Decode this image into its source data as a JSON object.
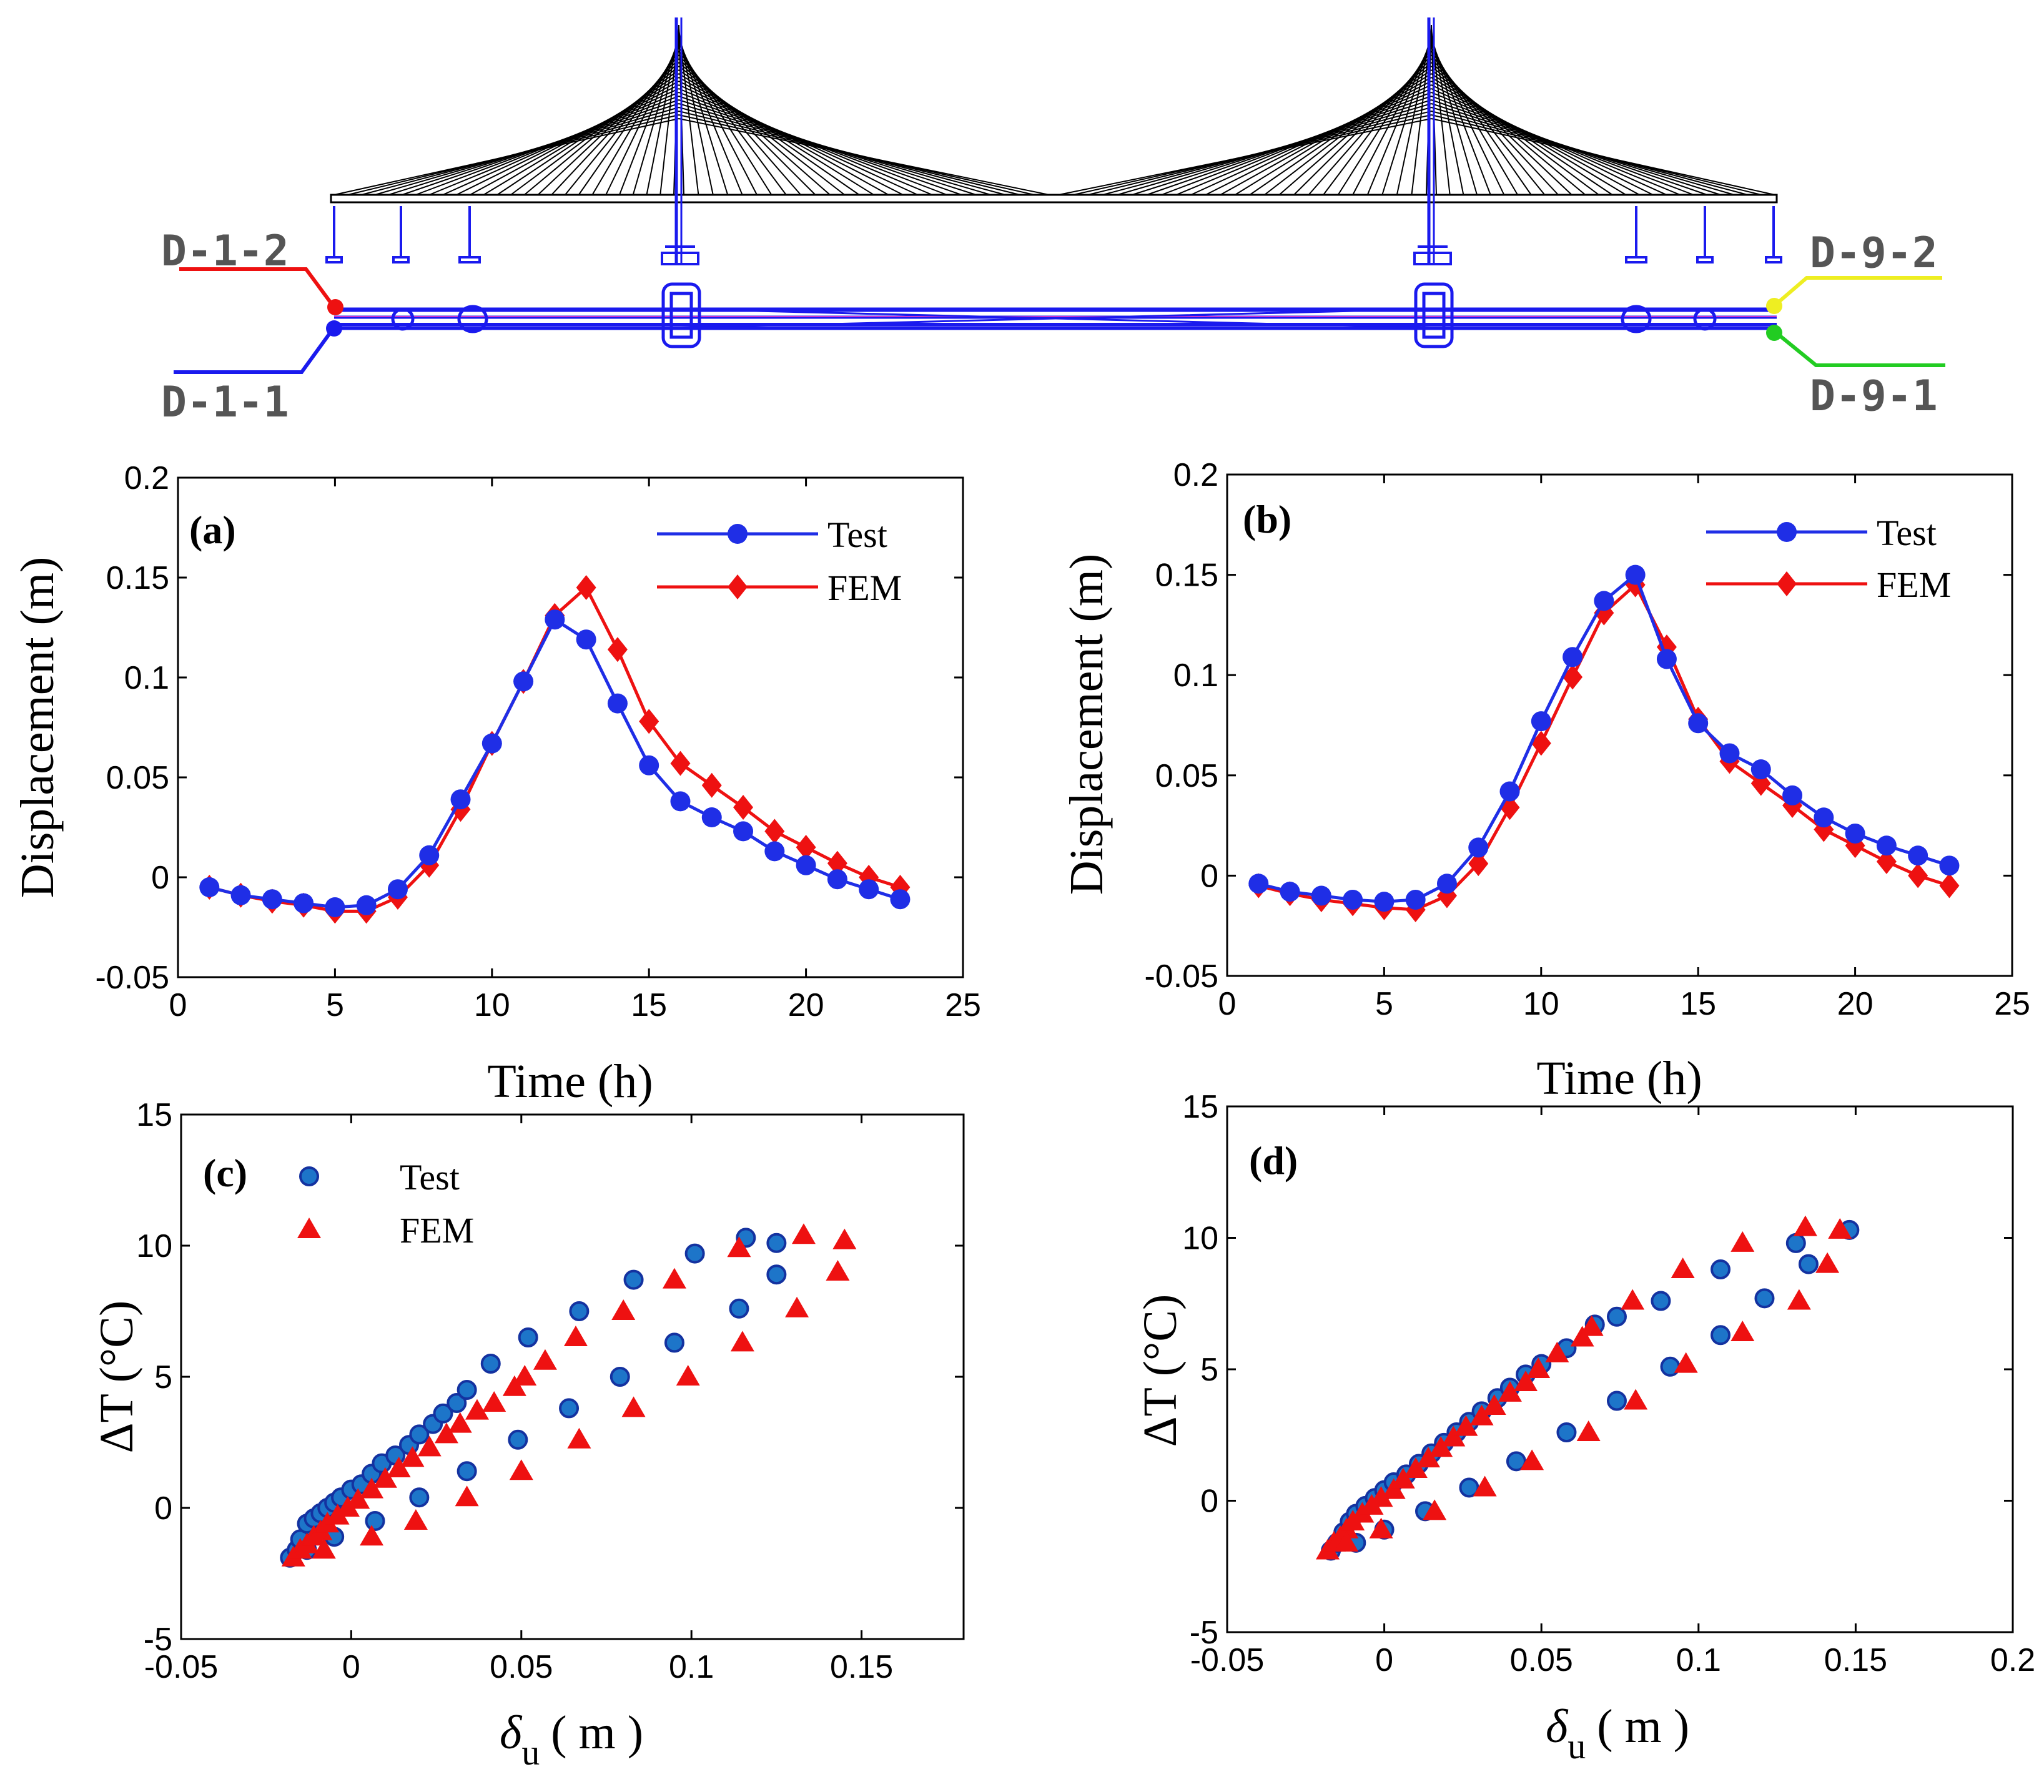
{
  "colors": {
    "test": "#1f2ee6",
    "fem": "#ee1111",
    "scatter_test_fill": "#1d75c9",
    "scatter_test_edge": "#1432a0",
    "scatter_fem": "#ee1111",
    "bridge": "#1a1aee"
  },
  "bridge": {
    "labels": {
      "d12": "D-1-2",
      "d11": "D-1-1",
      "d92": "D-9-2",
      "d91": "D-9-1"
    },
    "label_colors": {
      "d12": "#ee1111",
      "d11": "#1a1aee",
      "d92": "#eeee22",
      "d91": "#22cc22"
    }
  },
  "chart_data": [
    {
      "id": "a",
      "type": "line",
      "panel_label": "(a)",
      "xlabel": "Time (h)",
      "ylabel": "Displacement (m)",
      "xlim": [
        0,
        25
      ],
      "ylim": [
        -0.05,
        0.2
      ],
      "xticks": [
        0,
        5,
        10,
        15,
        20,
        25
      ],
      "yticks": [
        -0.05,
        0,
        0.05,
        0.1,
        0.15,
        0.2
      ],
      "ytick_labels": [
        "-0.05",
        "0",
        "0.05",
        "0.1",
        "0.15",
        "0.2"
      ],
      "legend": {
        "position": "top-right",
        "entries": [
          "Test",
          "FEM"
        ]
      },
      "x": [
        1,
        2,
        3,
        4,
        5,
        6,
        7,
        8,
        9,
        10,
        11,
        12,
        13,
        14,
        15,
        16,
        17,
        18,
        19,
        20,
        21,
        22,
        23
      ],
      "series": [
        {
          "name": "Test",
          "marker": "circle",
          "values": [
            -0.005,
            -0.009,
            -0.011,
            -0.013,
            -0.015,
            -0.014,
            -0.006,
            0.011,
            0.039,
            0.067,
            0.098,
            0.129,
            0.119,
            0.087,
            0.056,
            0.038,
            0.03,
            0.023,
            0.013,
            0.006,
            -0.001,
            -0.006,
            -0.011
          ]
        },
        {
          "name": "FEM",
          "marker": "diamond",
          "values": [
            -0.005,
            -0.009,
            -0.012,
            -0.014,
            -0.017,
            -0.017,
            -0.01,
            0.006,
            0.034,
            0.067,
            0.098,
            0.131,
            0.145,
            0.114,
            0.078,
            0.057,
            0.046,
            0.035,
            0.023,
            0.015,
            0.007,
            0.0,
            -0.005
          ]
        }
      ]
    },
    {
      "id": "b",
      "type": "line",
      "panel_label": "(b)",
      "xlabel": "Time (h)",
      "ylabel": "Displacement (m)",
      "xlim": [
        0,
        25
      ],
      "ylim": [
        -0.05,
        0.2
      ],
      "xticks": [
        0,
        5,
        10,
        15,
        20,
        25
      ],
      "yticks": [
        -0.05,
        0,
        0.05,
        0.1,
        0.15,
        0.2
      ],
      "ytick_labels": [
        "-0.05",
        "0",
        "0.05",
        "0.1",
        "0.15",
        "0.2"
      ],
      "legend": {
        "position": "top-right",
        "entries": [
          "Test",
          "FEM"
        ]
      },
      "x": [
        1,
        2,
        3,
        4,
        5,
        6,
        7,
        8,
        9,
        10,
        11,
        12,
        13,
        14,
        15,
        16,
        17,
        18,
        19,
        20,
        21,
        22,
        23
      ],
      "series": [
        {
          "name": "Test",
          "marker": "circle",
          "values": [
            -0.004,
            -0.008,
            -0.01,
            -0.012,
            -0.013,
            -0.012,
            -0.004,
            0.014,
            0.042,
            0.077,
            0.109,
            0.137,
            0.15,
            0.108,
            0.076,
            0.061,
            0.053,
            0.04,
            0.029,
            0.021,
            0.015,
            0.01,
            0.005
          ]
        },
        {
          "name": "FEM",
          "marker": "diamond",
          "values": [
            -0.005,
            -0.009,
            -0.012,
            -0.014,
            -0.016,
            -0.017,
            -0.01,
            0.006,
            0.034,
            0.066,
            0.099,
            0.131,
            0.145,
            0.114,
            0.078,
            0.057,
            0.046,
            0.035,
            0.023,
            0.015,
            0.007,
            0.0,
            -0.005
          ]
        }
      ]
    },
    {
      "id": "c",
      "type": "scatter",
      "panel_label": "(c)",
      "xlabel_symbol": "δ",
      "xlabel_sub": "u",
      "xlabel_unit": "( m )",
      "ylabel": "ΔT (°C)",
      "xlim": [
        -0.05,
        0.18
      ],
      "ylim": [
        -5,
        15
      ],
      "xticks": [
        -0.05,
        0,
        0.05,
        0.1,
        0.15
      ],
      "xtick_labels": [
        "-0.05",
        "0",
        "0.05",
        "0.1",
        "0.15"
      ],
      "yticks": [
        -5,
        0,
        5,
        10,
        15
      ],
      "ytick_labels": [
        "-5",
        "0",
        "5",
        "10",
        "15"
      ],
      "legend": {
        "position": "top-left",
        "entries": [
          "Test",
          "FEM"
        ]
      },
      "series": [
        {
          "name": "Test",
          "marker": "circle",
          "points": [
            [
              -0.018,
              -1.9
            ],
            [
              -0.016,
              -1.6
            ],
            [
              -0.015,
              -1.2
            ],
            [
              -0.013,
              -0.6
            ],
            [
              -0.011,
              -0.4
            ],
            [
              -0.009,
              -0.2
            ],
            [
              -0.007,
              0.0
            ],
            [
              -0.005,
              0.2
            ],
            [
              -0.003,
              0.4
            ],
            [
              0.0,
              0.7
            ],
            [
              0.003,
              0.9
            ],
            [
              0.006,
              1.3
            ],
            [
              0.009,
              1.7
            ],
            [
              0.013,
              2.0
            ],
            [
              0.017,
              2.4
            ],
            [
              0.02,
              2.8
            ],
            [
              0.024,
              3.2
            ],
            [
              0.027,
              3.6
            ],
            [
              0.031,
              4.0
            ],
            [
              0.034,
              4.5
            ],
            [
              0.041,
              5.5
            ],
            [
              0.052,
              6.5
            ],
            [
              0.067,
              7.5
            ],
            [
              0.083,
              8.7
            ],
            [
              0.101,
              9.7
            ],
            [
              0.116,
              10.3
            ],
            [
              0.125,
              10.1
            ],
            [
              0.125,
              8.9
            ],
            [
              0.114,
              7.6
            ],
            [
              0.095,
              6.3
            ],
            [
              0.079,
              5.0
            ],
            [
              0.064,
              3.8
            ],
            [
              0.049,
              2.6
            ],
            [
              0.034,
              1.4
            ],
            [
              0.02,
              0.4
            ],
            [
              0.007,
              -0.5
            ],
            [
              -0.005,
              -1.1
            ],
            [
              -0.013,
              -1.6
            ]
          ]
        },
        {
          "name": "FEM",
          "marker": "triangle",
          "points": [
            [
              -0.017,
              -1.9
            ],
            [
              -0.015,
              -1.6
            ],
            [
              -0.013,
              -1.4
            ],
            [
              -0.011,
              -1.1
            ],
            [
              -0.009,
              -0.9
            ],
            [
              -0.007,
              -0.6
            ],
            [
              -0.004,
              -0.3
            ],
            [
              -0.001,
              0.0
            ],
            [
              0.002,
              0.3
            ],
            [
              0.006,
              0.7
            ],
            [
              0.01,
              1.1
            ],
            [
              0.014,
              1.5
            ],
            [
              0.018,
              1.9
            ],
            [
              0.023,
              2.3
            ],
            [
              0.028,
              2.8
            ],
            [
              0.032,
              3.2
            ],
            [
              0.037,
              3.7
            ],
            [
              0.042,
              4.0
            ],
            [
              0.048,
              4.6
            ],
            [
              0.051,
              5.0
            ],
            [
              0.057,
              5.6
            ],
            [
              0.066,
              6.5
            ],
            [
              0.08,
              7.5
            ],
            [
              0.095,
              8.7
            ],
            [
              0.114,
              9.9
            ],
            [
              0.133,
              10.4
            ],
            [
              0.145,
              10.2
            ],
            [
              0.143,
              9.0
            ],
            [
              0.131,
              7.6
            ],
            [
              0.115,
              6.3
            ],
            [
              0.099,
              5.0
            ],
            [
              0.083,
              3.8
            ],
            [
              0.067,
              2.6
            ],
            [
              0.05,
              1.4
            ],
            [
              0.034,
              0.4
            ],
            [
              0.019,
              -0.5
            ],
            [
              0.006,
              -1.1
            ],
            [
              -0.008,
              -1.6
            ]
          ]
        }
      ]
    },
    {
      "id": "d",
      "type": "scatter",
      "panel_label": "(d)",
      "xlabel_symbol": "δ",
      "xlabel_sub": "u",
      "xlabel_unit": "( m )",
      "ylabel": "ΔT (°C)",
      "xlim": [
        -0.05,
        0.2
      ],
      "ylim": [
        -5,
        15
      ],
      "xticks": [
        -0.05,
        0,
        0.05,
        0.1,
        0.15,
        0.2
      ],
      "xtick_labels": [
        "-0.05",
        "0",
        "0.05",
        "0.1",
        "0.15",
        "0.2"
      ],
      "yticks": [
        -5,
        0,
        5,
        10,
        15
      ],
      "ytick_labels": [
        "-5",
        "0",
        "5",
        "10",
        "15"
      ],
      "legend": null,
      "series": [
        {
          "name": "Test",
          "marker": "circle",
          "points": [
            [
              -0.017,
              -1.9
            ],
            [
              -0.015,
              -1.6
            ],
            [
              -0.013,
              -1.2
            ],
            [
              -0.011,
              -0.8
            ],
            [
              -0.009,
              -0.5
            ],
            [
              -0.006,
              -0.2
            ],
            [
              -0.003,
              0.1
            ],
            [
              0.0,
              0.4
            ],
            [
              0.003,
              0.7
            ],
            [
              0.007,
              1.0
            ],
            [
              0.011,
              1.4
            ],
            [
              0.015,
              1.8
            ],
            [
              0.019,
              2.2
            ],
            [
              0.023,
              2.6
            ],
            [
              0.027,
              3.0
            ],
            [
              0.031,
              3.4
            ],
            [
              0.036,
              3.9
            ],
            [
              0.04,
              4.3
            ],
            [
              0.045,
              4.8
            ],
            [
              0.05,
              5.2
            ],
            [
              0.058,
              5.8
            ],
            [
              0.067,
              6.7
            ],
            [
              0.074,
              7.0
            ],
            [
              0.088,
              7.6
            ],
            [
              0.107,
              8.8
            ],
            [
              0.131,
              9.8
            ],
            [
              0.148,
              10.3
            ],
            [
              0.135,
              9.0
            ],
            [
              0.121,
              7.7
            ],
            [
              0.107,
              6.3
            ],
            [
              0.091,
              5.1
            ],
            [
              0.074,
              3.8
            ],
            [
              0.058,
              2.6
            ],
            [
              0.042,
              1.5
            ],
            [
              0.027,
              0.5
            ],
            [
              0.013,
              -0.4
            ],
            [
              0.0,
              -1.1
            ],
            [
              -0.009,
              -1.6
            ]
          ]
        },
        {
          "name": "FEM",
          "marker": "triangle",
          "points": [
            [
              -0.018,
              -1.9
            ],
            [
              -0.016,
              -1.6
            ],
            [
              -0.014,
              -1.4
            ],
            [
              -0.012,
              -1.1
            ],
            [
              -0.01,
              -0.8
            ],
            [
              -0.007,
              -0.5
            ],
            [
              -0.004,
              -0.2
            ],
            [
              -0.001,
              0.1
            ],
            [
              0.003,
              0.4
            ],
            [
              0.006,
              0.8
            ],
            [
              0.01,
              1.2
            ],
            [
              0.014,
              1.6
            ],
            [
              0.018,
              2.0
            ],
            [
              0.022,
              2.4
            ],
            [
              0.026,
              2.8
            ],
            [
              0.031,
              3.2
            ],
            [
              0.035,
              3.6
            ],
            [
              0.04,
              4.1
            ],
            [
              0.045,
              4.5
            ],
            [
              0.049,
              5.0
            ],
            [
              0.055,
              5.6
            ],
            [
              0.063,
              6.2
            ],
            [
              0.066,
              6.6
            ],
            [
              0.079,
              7.6
            ],
            [
              0.095,
              8.8
            ],
            [
              0.114,
              9.8
            ],
            [
              0.134,
              10.4
            ],
            [
              0.145,
              10.3
            ],
            [
              0.141,
              9.0
            ],
            [
              0.132,
              7.6
            ],
            [
              0.114,
              6.4
            ],
            [
              0.096,
              5.2
            ],
            [
              0.08,
              3.8
            ],
            [
              0.065,
              2.6
            ],
            [
              0.047,
              1.5
            ],
            [
              0.032,
              0.5
            ],
            [
              0.016,
              -0.4
            ],
            [
              -0.001,
              -1.1
            ],
            [
              -0.012,
              -1.6
            ]
          ]
        }
      ]
    }
  ]
}
